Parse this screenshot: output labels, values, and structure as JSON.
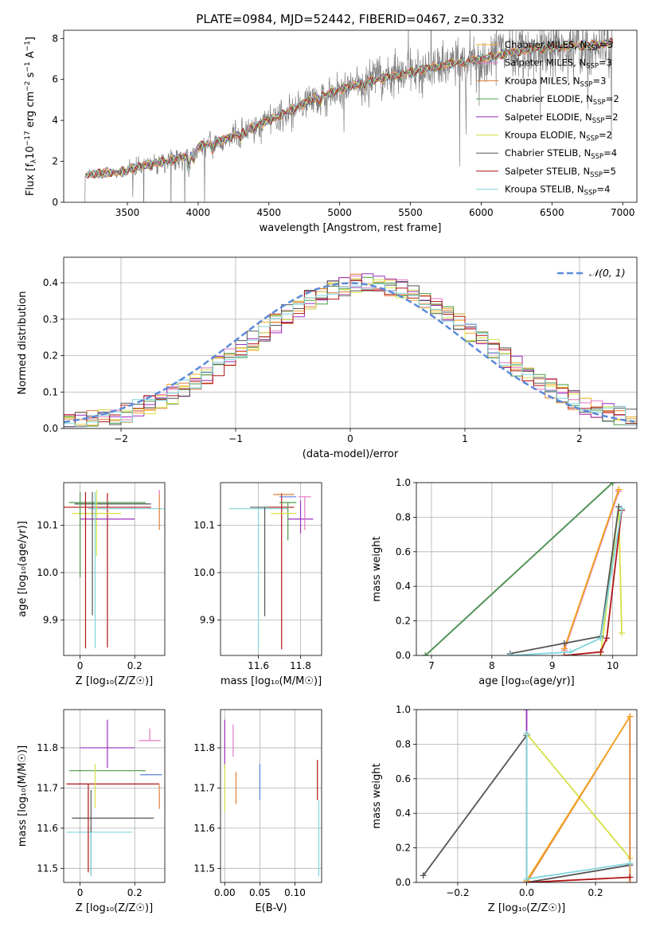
{
  "figure_title": "PLATE=0984, MJD=52442, FIBERID=0467, z=0.332",
  "colors": {
    "Chabrier MILES": "#f5a623",
    "Salpeter MILES": "#e377c2",
    "Kroupa MILES": "#dd7f36",
    "Chabrier ELODIE": "#4a9a4a",
    "Salpeter ELODIE": "#9b2fbf",
    "Kroupa ELODIE": "#d6e045",
    "Chabrier STELIB": "#555555",
    "Salpeter STELIB": "#b01515",
    "Kroupa STELIB": "#7fd6dc",
    "data": "#808080",
    "gaussian": "#5b8ad8",
    "extra_blue": "#5b7fd8"
  },
  "chart_data": [
    {
      "id": "spectrum",
      "type": "line",
      "xlabel": "wavelength [Angstrom, rest frame]",
      "ylabel": "Flux [f",
      "ylabel_parts": {
        "main": "Flux [f",
        "sub": "λ",
        "mid": "10",
        "exp1": "−17",
        "mid2": " erg cm",
        "exp2": "−2",
        "mid3": " s",
        "exp3": "−1",
        "mid4": " A",
        "exp4": "−1",
        "end": "]"
      },
      "xlim": [
        3050,
        7100
      ],
      "ylim": [
        0,
        8.4
      ],
      "xticks": [
        3500,
        4000,
        4500,
        5000,
        5500,
        6000,
        6500,
        7000
      ],
      "yticks": [
        0,
        2,
        4,
        6,
        8
      ],
      "x_range_data": [
        3200,
        6930
      ],
      "legend": [
        {
          "name": "Chabrier MILES, N",
          "sub": "SSP",
          "suffix": "=3",
          "key": "Chabrier MILES"
        },
        {
          "name": "Salpeter MILES, N",
          "sub": "SSP",
          "suffix": "=3",
          "key": "Salpeter MILES"
        },
        {
          "name": "Kroupa MILES, N",
          "sub": "SSP",
          "suffix": "=3",
          "key": "Kroupa MILES"
        },
        {
          "name": "Chabrier ELODIE, N",
          "sub": "SSP",
          "suffix": "=2",
          "key": "Chabrier ELODIE"
        },
        {
          "name": "Salpeter ELODIE, N",
          "sub": "SSP",
          "suffix": "=2",
          "key": "Salpeter ELODIE"
        },
        {
          "name": "Kroupa ELODIE, N",
          "sub": "SSP",
          "suffix": "=2",
          "key": "Kroupa ELODIE"
        },
        {
          "name": "Chabrier STELIB, N",
          "sub": "SSP",
          "suffix": "=4",
          "key": "Chabrier STELIB"
        },
        {
          "name": "Salpeter STELIB, N",
          "sub": "SSP",
          "suffix": "=5",
          "key": "Salpeter STELIB"
        },
        {
          "name": "Kroupa STELIB, N",
          "sub": "SSP",
          "suffix": "=4",
          "key": "Kroupa STELIB"
        }
      ],
      "continuum_nodes": [
        [
          3200,
          1.35
        ],
        [
          3400,
          1.45
        ],
        [
          3500,
          1.6
        ],
        [
          3700,
          1.9
        ],
        [
          3900,
          2.2
        ],
        [
          4000,
          2.7
        ],
        [
          4200,
          3.1
        ],
        [
          4400,
          3.7
        ],
        [
          4600,
          4.3
        ],
        [
          4800,
          5.0
        ],
        [
          5000,
          5.5
        ],
        [
          5200,
          5.9
        ],
        [
          5400,
          6.2
        ],
        [
          5600,
          6.5
        ],
        [
          5800,
          6.8
        ],
        [
          6000,
          7.0
        ],
        [
          6200,
          7.3
        ],
        [
          6400,
          7.5
        ],
        [
          6600,
          7.6
        ],
        [
          6800,
          7.7
        ],
        [
          6930,
          7.8
        ]
      ]
    },
    {
      "id": "residuals",
      "type": "histogram",
      "xlabel": "(data-model)/error",
      "ylabel": "Normed distribution",
      "xlim": [
        -2.5,
        2.5
      ],
      "ylim": [
        0,
        0.47
      ],
      "xticks": [
        -2,
        -1,
        0,
        1,
        2
      ],
      "yticks": [
        0.0,
        0.1,
        0.2,
        0.3,
        0.4
      ],
      "xtick_labels": [
        "−2",
        "−1",
        "0",
        "1",
        "2"
      ],
      "bin_width": 0.1,
      "legend": "𝒩(0, 1)",
      "gaussian": {
        "mean": 0.0,
        "sigma": 1.0
      }
    },
    {
      "id": "age-vs-Z",
      "type": "scatter",
      "xlabel": "Z [log₁₀(Z/Z☉)]",
      "ylabel": "age  [log₁₀(age/yr)]",
      "xlim": [
        -0.06,
        0.31
      ],
      "ylim": [
        9.825,
        10.19
      ],
      "xticks": [
        0.0,
        0.2
      ],
      "yticks": [
        9.9,
        10.0,
        10.1
      ],
      "points": [
        {
          "key": "Salpeter STELIB",
          "x": 0.1,
          "xerr": 0.16,
          "y": 10.138,
          "yerr": [
            0.296,
            0.03
          ]
        },
        {
          "key": "Chabrier STELIB",
          "x": 0.12,
          "xerr": 0.14,
          "y": 10.145,
          "yerr": [
            0.0,
            0.0
          ]
        },
        {
          "key": "Kroupa STELIB",
          "x": 0.17,
          "xerr": 0.14,
          "y": 10.135,
          "yerr": [
            0.0,
            0.0
          ]
        },
        {
          "key": "Chabrier ELODIE",
          "x": 0.1,
          "xerr": 0.14,
          "y": 10.148,
          "yerr": [
            0.0,
            0.0
          ]
        },
        {
          "key": "Kroupa ELODIE",
          "x": 0.06,
          "xerr": 0.09,
          "y": 10.125,
          "yerr": [
            0.09,
            0.05
          ]
        },
        {
          "key": "Salpeter ELODIE",
          "x": 0.1,
          "xerr": 0.1,
          "y": 10.113,
          "yerr": [
            0.0,
            0.0
          ]
        },
        {
          "key": "Kroupa MILES",
          "x": 0.29,
          "xerr": 0.0,
          "y": 10.16,
          "yerr": [
            0.07,
            0.01
          ]
        },
        {
          "key": "Salpeter MILES",
          "x": 0.29,
          "xerr": 0.0,
          "y": 10.165,
          "yerr": [
            0.0,
            0.01
          ]
        },
        {
          "key": "Salpeter STELIB",
          "x": 0.02,
          "xerr": 0.0,
          "y": 10.1,
          "yerr": [
            0.26,
            0.07
          ]
        },
        {
          "key": "Chabrier STELIB",
          "x": 0.045,
          "xerr": 0.0,
          "y": 10.12,
          "yerr": [
            0.21,
            0.05
          ]
        },
        {
          "key": "Kroupa STELIB",
          "x": 0.055,
          "xerr": 0.0,
          "y": 10.12,
          "yerr": [
            0.28,
            0.05
          ]
        },
        {
          "key": "Chabrier ELODIE",
          "x": 0.0,
          "xerr": 0.0,
          "y": 10.12,
          "yerr": [
            0.13,
            0.05
          ]
        }
      ]
    },
    {
      "id": "age-vs-mass",
      "type": "scatter",
      "xlabel": "mass [log₁₀(M/M☉)]",
      "ylabel": "",
      "xlim": [
        11.42,
        11.9
      ],
      "ylim": [
        9.825,
        10.19
      ],
      "xticks": [
        11.6,
        11.8
      ],
      "yticks": [
        9.9,
        10.0,
        10.1
      ],
      "points": [
        {
          "key": "Kroupa STELIB",
          "x": 11.6,
          "xerr": 0.14,
          "y": 10.135,
          "yerr": [
            0.3,
            0.0
          ]
        },
        {
          "key": "Chabrier STELIB",
          "x": 11.63,
          "xerr": 0.07,
          "y": 10.138,
          "yerr": [
            0.23,
            0.0
          ]
        },
        {
          "key": "Salpeter STELIB",
          "x": 11.71,
          "xerr": 0.06,
          "y": 10.138,
          "yerr": [
            0.3,
            0.03
          ]
        },
        {
          "key": "Chabrier ELODIE",
          "x": 11.74,
          "xerr": 0.04,
          "y": 10.148,
          "yerr": [
            0.08,
            0.0
          ]
        },
        {
          "key": "Kroupa ELODIE",
          "x": 11.72,
          "xerr": 0.06,
          "y": 10.125,
          "yerr": [
            0.0,
            0.0
          ]
        },
        {
          "key": "Salpeter ELODIE",
          "x": 11.8,
          "xerr": 0.06,
          "y": 10.113,
          "yerr": [
            0.03,
            0.04
          ]
        },
        {
          "key": "Salpeter MILES",
          "x": 11.82,
          "xerr": 0.03,
          "y": 10.16,
          "yerr": [
            0.07,
            0.0
          ]
        },
        {
          "key": "Kroupa MILES",
          "x": 11.72,
          "xerr": 0.05,
          "y": 10.165,
          "yerr": [
            0.0,
            0.0
          ]
        },
        {
          "key": "extra_blue",
          "x": 11.74,
          "xerr": 0.04,
          "y": 10.16,
          "yerr": [
            0.0,
            0.0
          ]
        }
      ]
    },
    {
      "id": "cumulative-mass-vs-age",
      "type": "line",
      "xlabel": "age  [log₁₀(age/yr)]",
      "ylabel": "mass weight",
      "xlim": [
        6.75,
        10.4
      ],
      "ylim": [
        0.0,
        1.0
      ],
      "xticks": [
        7,
        8,
        9,
        10
      ],
      "yticks": [
        0.0,
        0.2,
        0.4,
        0.6,
        0.8,
        1.0
      ],
      "series": [
        {
          "key": "Kroupa MILES",
          "x": [
            9.2,
            10.1
          ],
          "y": [
            0.04,
            0.96
          ]
        },
        {
          "key": "Salpeter MILES",
          "x": [
            9.2,
            10.1
          ],
          "y": [
            0.03,
            0.95
          ]
        },
        {
          "key": "Chabrier MILES",
          "x": [
            9.2,
            10.1
          ],
          "y": [
            0.04,
            0.96
          ]
        },
        {
          "key": "Salpeter ELODIE",
          "x": [
            6.9,
            10.0
          ],
          "y": [
            0.0,
            1.0
          ]
        },
        {
          "key": "Chabrier ELODIE",
          "x": [
            6.9,
            10.0
          ],
          "y": [
            0.0,
            1.0
          ]
        },
        {
          "key": "Kroupa ELODIE",
          "x": [
            9.8,
            10.1,
            10.15
          ],
          "y": [
            0.0,
            0.86,
            0.13
          ]
        },
        {
          "key": "Chabrier STELIB",
          "x": [
            8.3,
            9.2,
            9.8,
            10.1
          ],
          "y": [
            0.01,
            0.07,
            0.11,
            0.86
          ]
        },
        {
          "key": "Salpeter STELIB",
          "x": [
            9.2,
            9.8,
            9.9,
            10.15
          ],
          "y": [
            0.0,
            0.02,
            0.1,
            0.84
          ]
        },
        {
          "key": "Kroupa STELIB",
          "x": [
            8.3,
            9.3,
            9.8,
            10.15
          ],
          "y": [
            0.0,
            0.02,
            0.1,
            0.85
          ]
        }
      ]
    },
    {
      "id": "mass-vs-Z",
      "type": "scatter",
      "xlabel": "Z [log₁₀(Z/Z☉)]",
      "ylabel": "mass [log₁₀(M/M☉)]",
      "xlim": [
        -0.06,
        0.31
      ],
      "ylim": [
        11.465,
        11.895
      ],
      "xticks": [
        0.0,
        0.2
      ],
      "yticks": [
        11.5,
        11.6,
        11.7,
        11.8
      ],
      "points": [
        {
          "key": "Salpeter ELODIE",
          "x": 0.1,
          "xerr": 0.1,
          "y": 11.8,
          "yerr": [
            0.05,
            0.07
          ]
        },
        {
          "key": "Chabrier ELODIE",
          "x": 0.1,
          "xerr": 0.14,
          "y": 11.743,
          "yerr": [
            0.0,
            0.0
          ]
        },
        {
          "key": "Salpeter STELIB",
          "x": 0.12,
          "xerr": 0.17,
          "y": 11.71,
          "yerr": [
            0.0,
            0.0
          ]
        },
        {
          "key": "Chabrier STELIB",
          "x": 0.12,
          "xerr": 0.15,
          "y": 11.625,
          "yerr": [
            0.0,
            0.0
          ]
        },
        {
          "key": "Kroupa STELIB",
          "x": 0.07,
          "xerr": 0.12,
          "y": 11.59,
          "yerr": [
            0.0,
            0.0
          ]
        },
        {
          "key": "Salpeter MILES",
          "x": 0.255,
          "xerr": 0.04,
          "y": 11.818,
          "yerr": [
            0.0,
            0.03
          ]
        },
        {
          "key": "extra_blue",
          "x": 0.26,
          "xerr": 0.04,
          "y": 11.733,
          "yerr": [
            0.0,
            0.0
          ]
        },
        {
          "key": "Kroupa MILES",
          "x": 0.29,
          "xerr": 0.0,
          "y": 11.708,
          "yerr": [
            0.06,
            0.0
          ]
        },
        {
          "key": "Chabrier STELIB",
          "x": 0.04,
          "xerr": 0.0,
          "y": 11.625,
          "yerr": [
            0.14,
            0.07
          ]
        },
        {
          "key": "Kroupa STELIB",
          "x": 0.04,
          "xerr": 0.0,
          "y": 11.59,
          "yerr": [
            0.11,
            0.0
          ]
        },
        {
          "key": "Kroupa ELODIE",
          "x": 0.055,
          "xerr": 0.0,
          "y": 11.7,
          "yerr": [
            0.05,
            0.06
          ]
        },
        {
          "key": "Salpeter STELIB",
          "x": 0.03,
          "xerr": 0.0,
          "y": 11.71,
          "yerr": [
            0.22,
            0.0
          ]
        }
      ]
    },
    {
      "id": "mass-vs-ebv",
      "type": "scatter",
      "xlabel": "E(B-V)",
      "ylabel": "",
      "xlim": [
        -0.006,
        0.138
      ],
      "ylim": [
        11.465,
        11.895
      ],
      "xticks": [
        0.0,
        0.05,
        0.1
      ],
      "xtick_labels": [
        "0.00",
        "0.05",
        "0.10"
      ],
      "yticks": [
        11.5,
        11.6,
        11.7,
        11.8
      ],
      "points": [
        {
          "key": "Salpeter ELODIE",
          "x": 0.0,
          "y": 11.8,
          "yerr": [
            0.05,
            0.07
          ]
        },
        {
          "key": "Kroupa ELODIE",
          "x": 0.0,
          "y": 11.7,
          "yerr": [
            0.06,
            0.06
          ]
        },
        {
          "key": "Salpeter MILES",
          "x": 0.012,
          "y": 11.818,
          "yerr": [
            0.04,
            0.04
          ]
        },
        {
          "key": "Kroupa MILES",
          "x": 0.016,
          "y": 11.71,
          "yerr": [
            0.05,
            0.03
          ]
        },
        {
          "key": "extra_blue",
          "x": 0.05,
          "y": 11.72,
          "yerr": [
            0.05,
            0.04
          ]
        },
        {
          "key": "Salpeter STELIB",
          "x": 0.132,
          "y": 11.71,
          "yerr": [
            0.04,
            0.06
          ]
        },
        {
          "key": "Kroupa STELIB",
          "x": 0.134,
          "y": 11.6,
          "yerr": [
            0.12,
            0.07
          ]
        }
      ]
    },
    {
      "id": "cumulative-mass-vs-Z",
      "type": "line",
      "xlabel": "Z [log₁₀(Z/Z☉)]",
      "ylabel": "mass weight",
      "xlim": [
        -0.32,
        0.32
      ],
      "ylim": [
        0.0,
        1.0
      ],
      "xticks": [
        -0.2,
        0.0,
        0.2
      ],
      "xtick_labels": [
        "−0.2",
        "0.0",
        "0.2"
      ],
      "yticks": [
        0.0,
        0.2,
        0.4,
        0.6,
        0.8,
        1.0
      ],
      "series": [
        {
          "key": "Chabrier STELIB",
          "x": [
            -0.3,
            0.0,
            0.0,
            0.3
          ],
          "y": [
            0.04,
            0.85,
            0.0,
            0.1
          ]
        },
        {
          "key": "Kroupa ELODIE",
          "x": [
            0.0,
            0.3
          ],
          "y": [
            0.86,
            0.14
          ]
        },
        {
          "key": "Kroupa MILES",
          "x": [
            0.0,
            0.3,
            0.3
          ],
          "y": [
            0.0,
            0.96,
            0.0
          ]
        },
        {
          "key": "Chabrier MILES",
          "x": [
            0.0,
            0.3
          ],
          "y": [
            0.01,
            0.96
          ]
        },
        {
          "key": "Salpeter ELODIE",
          "x": [
            0.0,
            0.0
          ],
          "y": [
            0.86,
            1.0
          ]
        },
        {
          "key": "Salpeter STELIB",
          "x": [
            0.0,
            0.3
          ],
          "y": [
            0.0,
            0.03
          ]
        },
        {
          "key": "Kroupa STELIB",
          "x": [
            0.0,
            0.0,
            0.3
          ],
          "y": [
            0.86,
            0.02,
            0.11
          ]
        }
      ]
    }
  ]
}
